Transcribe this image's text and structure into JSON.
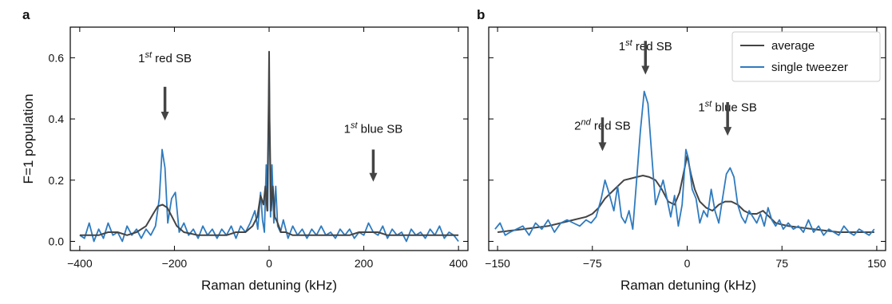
{
  "chart_data": [
    {
      "panel_label": "a",
      "type": "line",
      "xlabel": "Raman detuning (kHz)",
      "ylabel": "F=1 population",
      "xlim": [
        -420,
        420
      ],
      "ylim": [
        -0.03,
        0.7
      ],
      "xticks": [
        -400,
        -200,
        0,
        200,
        400
      ],
      "xtick_labels": [
        "−400",
        "−200",
        "0",
        "200",
        "400"
      ],
      "yticks": [
        0.0,
        0.2,
        0.4,
        0.6
      ],
      "ytick_labels": [
        "0.0",
        "0.2",
        "0.4",
        "0.6"
      ],
      "annotations": [
        {
          "base": "1",
          "sup": "st",
          "rest": " red SB",
          "x": -220,
          "text_y": 0.585,
          "arrow_top": 0.505,
          "arrow_bottom": 0.395
        },
        {
          "base": "1",
          "sup": "st",
          "rest": " blue SB",
          "x": 220,
          "text_y": 0.355,
          "arrow_top": 0.3,
          "arrow_bottom": 0.195
        }
      ],
      "series": [
        {
          "name": "single tweezer",
          "color": "#2f7bbf",
          "x": [
            -400,
            -390,
            -380,
            -370,
            -360,
            -350,
            -340,
            -330,
            -320,
            -310,
            -300,
            -290,
            -280,
            -270,
            -260,
            -250,
            -240,
            -232,
            -226,
            -220,
            -214,
            -206,
            -198,
            -190,
            -180,
            -170,
            -160,
            -150,
            -140,
            -130,
            -120,
            -110,
            -100,
            -90,
            -80,
            -70,
            -60,
            -50,
            -40,
            -30,
            -24,
            -18,
            -14,
            -10,
            -6,
            -3,
            0,
            3,
            6,
            10,
            14,
            18,
            24,
            30,
            40,
            50,
            60,
            70,
            80,
            90,
            100,
            110,
            120,
            130,
            140,
            150,
            160,
            170,
            180,
            190,
            200,
            210,
            220,
            230,
            240,
            250,
            260,
            270,
            280,
            290,
            300,
            310,
            320,
            330,
            340,
            350,
            360,
            370,
            380,
            390,
            400
          ],
          "y": [
            0.02,
            0.01,
            0.06,
            0.0,
            0.04,
            0.01,
            0.06,
            0.02,
            0.03,
            0.0,
            0.05,
            0.02,
            0.04,
            0.01,
            0.04,
            0.02,
            0.05,
            0.14,
            0.3,
            0.24,
            0.06,
            0.14,
            0.16,
            0.03,
            0.06,
            0.02,
            0.04,
            0.01,
            0.05,
            0.02,
            0.04,
            0.01,
            0.04,
            0.02,
            0.05,
            0.01,
            0.05,
            0.03,
            0.06,
            0.1,
            0.04,
            0.16,
            0.07,
            0.03,
            0.25,
            0.1,
            0.55,
            0.08,
            0.25,
            0.06,
            0.18,
            0.05,
            0.03,
            0.07,
            0.01,
            0.05,
            0.02,
            0.04,
            0.01,
            0.04,
            0.02,
            0.05,
            0.02,
            0.03,
            0.01,
            0.04,
            0.02,
            0.04,
            0.01,
            0.03,
            0.02,
            0.06,
            0.03,
            0.02,
            0.05,
            0.01,
            0.04,
            0.02,
            0.03,
            0.0,
            0.04,
            0.02,
            0.03,
            0.01,
            0.04,
            0.02,
            0.05,
            0.01,
            0.03,
            0.02,
            0.0
          ]
        },
        {
          "name": "average",
          "color": "#444444",
          "x": [
            -400,
            -380,
            -360,
            -340,
            -320,
            -300,
            -280,
            -260,
            -245,
            -235,
            -225,
            -215,
            -205,
            -195,
            -180,
            -165,
            -150,
            -130,
            -110,
            -90,
            -70,
            -50,
            -35,
            -25,
            -18,
            -12,
            -8,
            -4,
            -1,
            0,
            1,
            4,
            8,
            12,
            18,
            25,
            35,
            50,
            70,
            90,
            110,
            130,
            150,
            170,
            190,
            210,
            230,
            250,
            270,
            290,
            310,
            330,
            350,
            370,
            390,
            400
          ],
          "y": [
            0.02,
            0.02,
            0.02,
            0.03,
            0.03,
            0.02,
            0.03,
            0.05,
            0.09,
            0.115,
            0.12,
            0.11,
            0.08,
            0.05,
            0.03,
            0.025,
            0.02,
            0.02,
            0.02,
            0.02,
            0.03,
            0.03,
            0.05,
            0.08,
            0.15,
            0.12,
            0.18,
            0.1,
            0.45,
            0.62,
            0.4,
            0.1,
            0.18,
            0.08,
            0.06,
            0.03,
            0.03,
            0.02,
            0.02,
            0.02,
            0.02,
            0.02,
            0.02,
            0.02,
            0.03,
            0.03,
            0.03,
            0.02,
            0.02,
            0.02,
            0.02,
            0.02,
            0.02,
            0.02,
            0.02,
            0.02
          ]
        }
      ]
    },
    {
      "panel_label": "b",
      "type": "line",
      "xlabel": "Raman detuning (kHz)",
      "ylabel": "",
      "xlim": [
        -157,
        157
      ],
      "ylim": [
        -0.03,
        0.7
      ],
      "xticks": [
        -150,
        -75,
        0,
        75,
        150
      ],
      "xtick_labels": [
        "−150",
        "−75",
        "0",
        "75",
        "150"
      ],
      "yticks": [
        0.0,
        0.2,
        0.4,
        0.6
      ],
      "legend_position": "top-right",
      "annotations": [
        {
          "base": "1",
          "sup": "st",
          "rest": " red SB",
          "x": -33,
          "text_y": 0.625,
          "arrow_top": 0.655,
          "arrow_bottom": 0.545
        },
        {
          "base": "2",
          "sup": "nd",
          "rest": " red SB",
          "x": -67,
          "text_y": 0.365,
          "arrow_top": 0.405,
          "arrow_bottom": 0.295
        },
        {
          "base": "1",
          "sup": "st",
          "rest": " blue SB",
          "x": 32,
          "text_y": 0.425,
          "arrow_top": 0.455,
          "arrow_bottom": 0.345
        }
      ],
      "series": [
        {
          "name": "average",
          "color": "#444444",
          "x": [
            -150,
            -140,
            -130,
            -120,
            -110,
            -100,
            -90,
            -80,
            -75,
            -70,
            -65,
            -60,
            -55,
            -50,
            -45,
            -40,
            -35,
            -30,
            -25,
            -20,
            -15,
            -10,
            -6,
            -3,
            0,
            3,
            6,
            10,
            15,
            20,
            25,
            30,
            35,
            40,
            45,
            50,
            55,
            60,
            65,
            70,
            80,
            90,
            100,
            110,
            120,
            130,
            140,
            148
          ],
          "y": [
            0.03,
            0.035,
            0.04,
            0.045,
            0.05,
            0.06,
            0.07,
            0.08,
            0.09,
            0.11,
            0.14,
            0.16,
            0.18,
            0.2,
            0.205,
            0.21,
            0.215,
            0.21,
            0.2,
            0.17,
            0.13,
            0.12,
            0.16,
            0.22,
            0.28,
            0.22,
            0.17,
            0.13,
            0.11,
            0.1,
            0.12,
            0.13,
            0.13,
            0.12,
            0.1,
            0.09,
            0.09,
            0.1,
            0.08,
            0.06,
            0.05,
            0.045,
            0.04,
            0.035,
            0.03,
            0.03,
            0.03,
            0.03
          ]
        },
        {
          "name": "single tweezer",
          "color": "#2f7bbf",
          "x": [
            -152,
            -148,
            -144,
            -140,
            -135,
            -130,
            -125,
            -120,
            -115,
            -110,
            -105,
            -100,
            -95,
            -90,
            -85,
            -80,
            -76,
            -72,
            -68,
            -65,
            -62,
            -58,
            -55,
            -52,
            -49,
            -46,
            -43,
            -40,
            -37,
            -34,
            -31,
            -28,
            -25,
            -22,
            -19,
            -16,
            -13,
            -10,
            -7,
            -4,
            -1,
            1,
            4,
            7,
            10,
            13,
            16,
            19,
            22,
            25,
            28,
            31,
            34,
            37,
            40,
            43,
            46,
            49,
            52,
            55,
            58,
            61,
            64,
            67,
            70,
            73,
            76,
            80,
            84,
            88,
            92,
            96,
            100,
            104,
            108,
            112,
            116,
            120,
            124,
            128,
            132,
            136,
            140,
            144,
            148
          ],
          "y": [
            0.04,
            0.06,
            0.02,
            0.03,
            0.04,
            0.05,
            0.02,
            0.06,
            0.04,
            0.07,
            0.03,
            0.06,
            0.07,
            0.06,
            0.05,
            0.07,
            0.06,
            0.08,
            0.14,
            0.2,
            0.16,
            0.1,
            0.18,
            0.08,
            0.06,
            0.1,
            0.04,
            0.2,
            0.36,
            0.49,
            0.45,
            0.28,
            0.12,
            0.16,
            0.2,
            0.14,
            0.08,
            0.15,
            0.05,
            0.12,
            0.3,
            0.27,
            0.17,
            0.14,
            0.06,
            0.1,
            0.08,
            0.17,
            0.1,
            0.06,
            0.14,
            0.22,
            0.24,
            0.21,
            0.12,
            0.08,
            0.06,
            0.1,
            0.08,
            0.06,
            0.09,
            0.05,
            0.11,
            0.07,
            0.05,
            0.07,
            0.04,
            0.06,
            0.04,
            0.05,
            0.03,
            0.07,
            0.03,
            0.05,
            0.02,
            0.04,
            0.03,
            0.02,
            0.05,
            0.03,
            0.02,
            0.04,
            0.03,
            0.02,
            0.04
          ]
        }
      ]
    }
  ]
}
